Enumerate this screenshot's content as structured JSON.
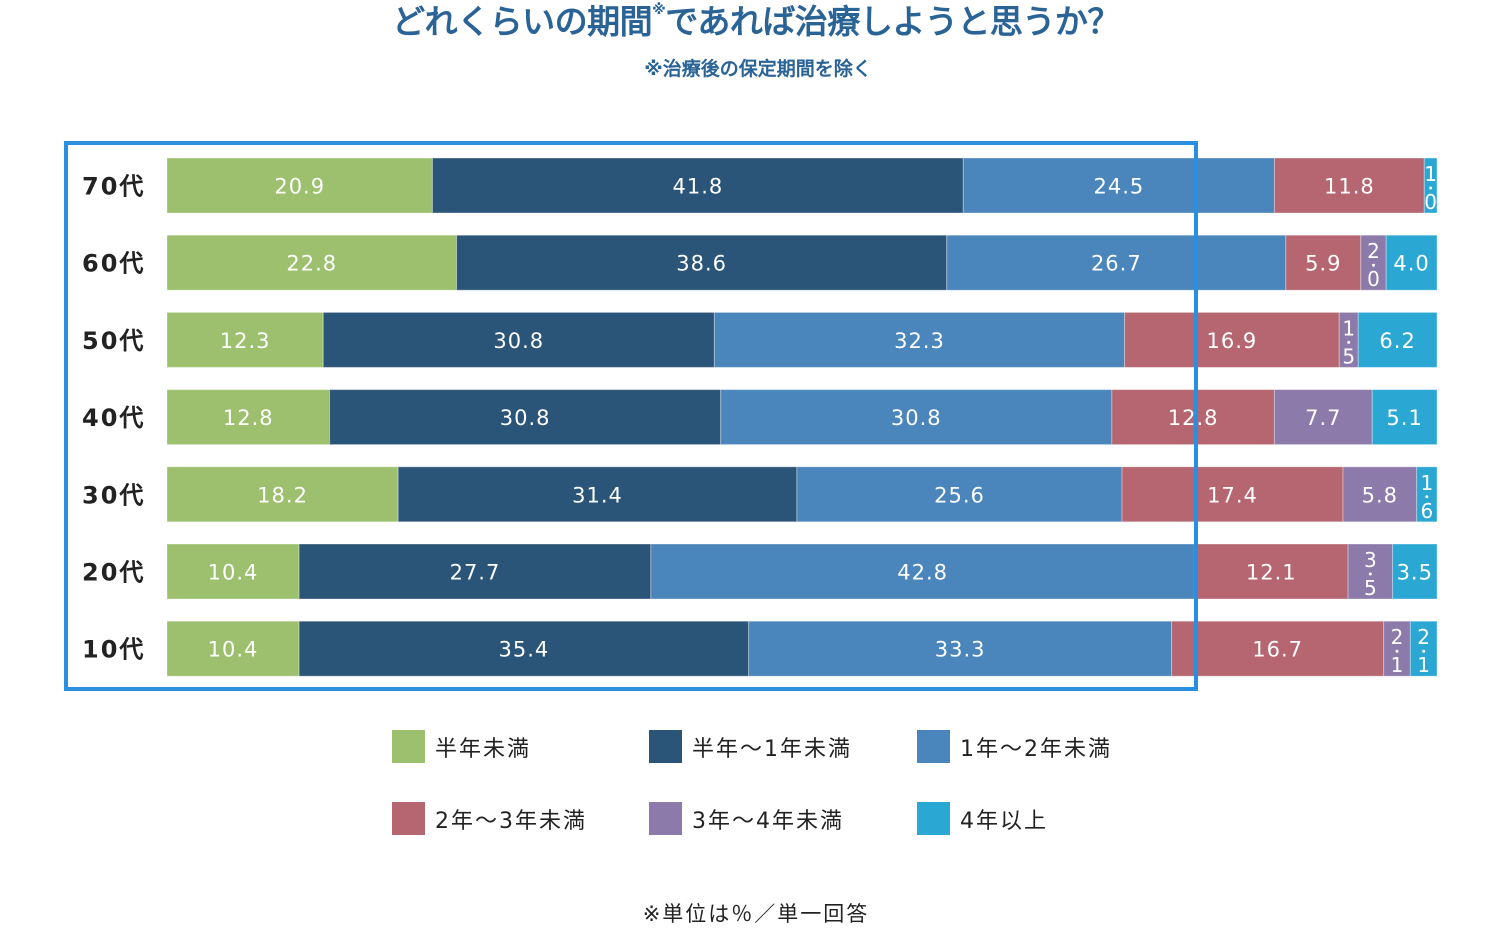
{
  "header": {
    "title_main": "どれくらいの期間",
    "title_mark": "※",
    "title_rest": "であれば治療しようと思うか？",
    "subtitle": "※治療後の保定期間を除く"
  },
  "note": "※単位は％／単一回答",
  "chart_data": {
    "type": "bar",
    "stacked": true,
    "orientation": "horizontal",
    "title": "どれくらいの期間※であれば治療しようと思うか？",
    "unit": "%",
    "categories": [
      "70代",
      "60代",
      "50代",
      "40代",
      "30代",
      "20代",
      "10代"
    ],
    "highlighted_categories": [
      "70代",
      "60代",
      "50代",
      "40代",
      "30代",
      "20代",
      "10代"
    ],
    "series": [
      {
        "name": "半年未満",
        "color": "#9cc06e",
        "values": [
          20.9,
          22.8,
          12.3,
          12.8,
          18.2,
          10.4,
          10.4
        ]
      },
      {
        "name": "半年〜1年未満",
        "color": "#2b5578",
        "values": [
          41.8,
          38.6,
          30.8,
          30.8,
          31.4,
          27.7,
          35.4
        ]
      },
      {
        "name": "1年〜2年未満",
        "color": "#4a86bc",
        "values": [
          24.5,
          26.7,
          32.3,
          30.8,
          25.6,
          42.8,
          33.3
        ]
      },
      {
        "name": "2年〜3年未満",
        "color": "#b56671",
        "values": [
          11.8,
          5.9,
          16.9,
          12.8,
          17.4,
          12.1,
          16.7
        ]
      },
      {
        "name": "3年〜4年未満",
        "color": "#8c7aab",
        "values": [
          null,
          2.0,
          1.5,
          7.7,
          5.8,
          3.5,
          2.1
        ]
      },
      {
        "name": "4年以上",
        "color": "#2ba7d4",
        "values": [
          1.0,
          4.0,
          6.2,
          5.1,
          1.6,
          3.5,
          2.1
        ]
      }
    ],
    "xlim": [
      0,
      100
    ],
    "grid": false,
    "legend_position": "bottom",
    "highlight_color": "#2b8fe0"
  }
}
